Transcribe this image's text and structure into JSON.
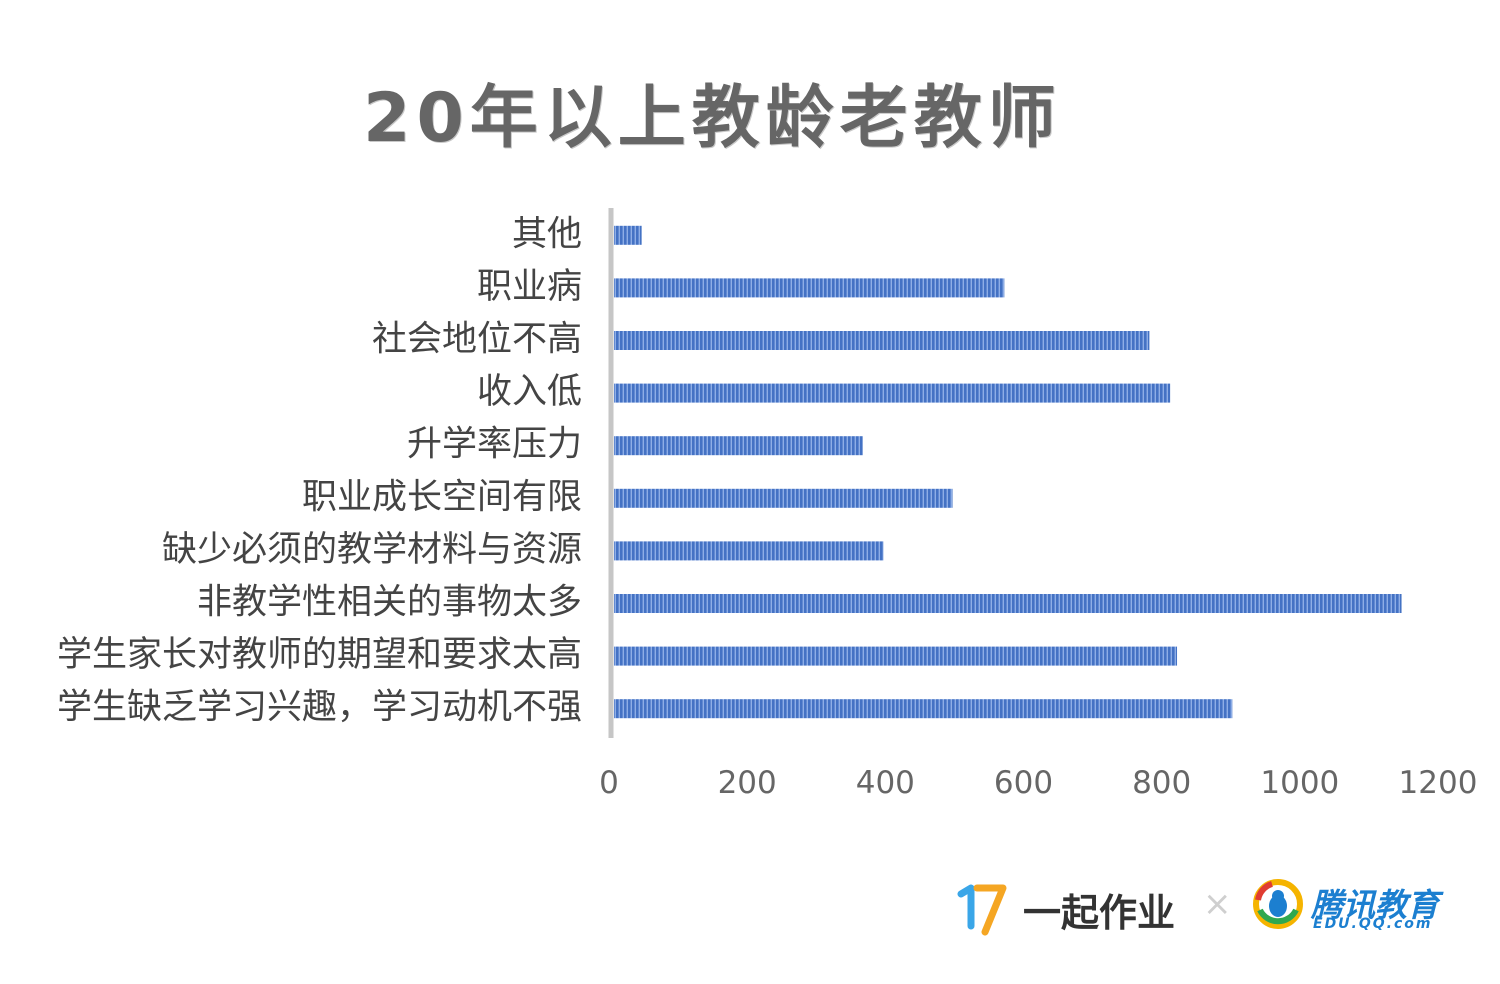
{
  "chart_data": {
    "type": "bar",
    "orientation": "horizontal",
    "title": "20年以上教龄老教师",
    "categories": [
      "其他",
      "职业病",
      "社会地位不高",
      "收入低",
      "升学率压力",
      "职业成长空间有限",
      "缺少必须的教学材料与资源",
      "非教学性相关的事物太多",
      "学生家长对教师的期望和要求太高",
      "学生缺乏学习兴趣，学习动机不强"
    ],
    "values": [
      40,
      565,
      775,
      805,
      360,
      490,
      390,
      1140,
      815,
      895
    ],
    "xlim": [
      0,
      1200
    ],
    "xticks": [
      "0",
      "200",
      "400",
      "600",
      "800",
      "1000",
      "1200"
    ],
    "bar_color": "#4472C4",
    "grid": false,
    "legend": "none"
  },
  "footer": {
    "brand_17zuoye": "一起作业",
    "separator": "×",
    "brand_tencent": "腾讯教育",
    "brand_tencent_url": "EDU.QQ.com"
  }
}
